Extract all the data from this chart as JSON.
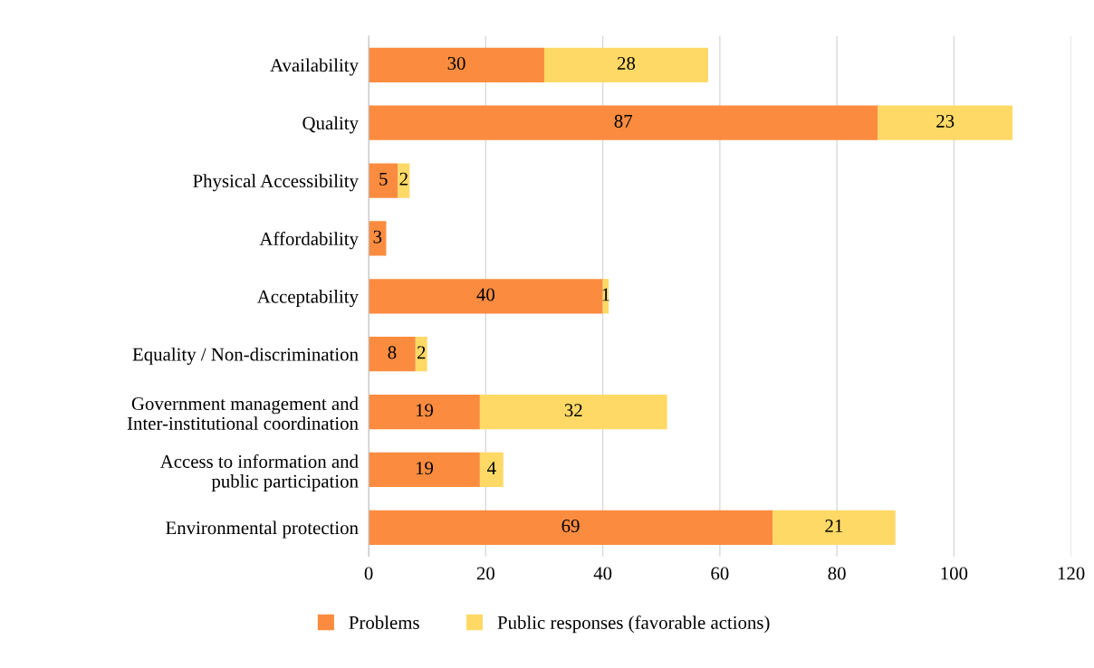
{
  "chart_data": {
    "type": "bar",
    "orientation": "horizontal",
    "stacked": true,
    "categories": [
      "Availability",
      "Quality",
      "Physical Accessibility",
      "Affordability",
      "Acceptability",
      "Equality / Non-discrimination",
      "Government management and\nInter-institutional coordination",
      "Access to information and\npublic participation",
      "Environmental protection"
    ],
    "series": [
      {
        "name": "Problems",
        "color": "#fb8c3f",
        "values": [
          30,
          87,
          5,
          3,
          40,
          8,
          19,
          19,
          69
        ]
      },
      {
        "name": "Public responses (favorable actions)",
        "color": "#ffd966",
        "values": [
          28,
          23,
          2,
          null,
          1,
          2,
          32,
          4,
          21
        ]
      }
    ],
    "xlim": [
      0,
      120
    ],
    "xticks": [
      0,
      20,
      40,
      60,
      80,
      100,
      120
    ],
    "grid": "x",
    "legend": "bottom",
    "data_labels": true
  }
}
